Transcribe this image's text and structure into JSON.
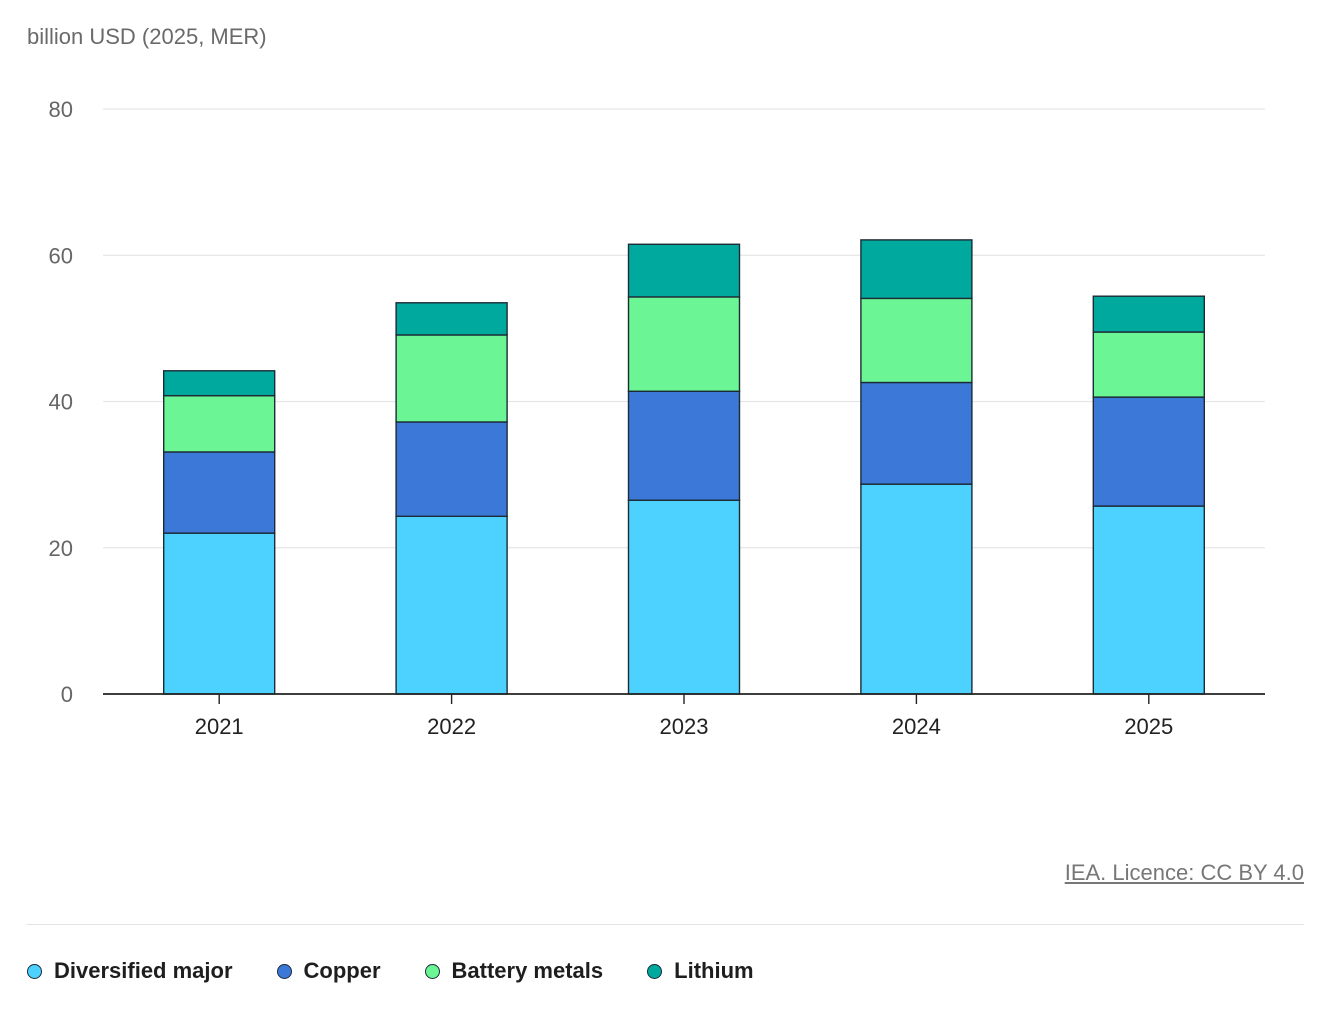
{
  "unit_label": "billion USD (2025, MER)",
  "credit": "IEA. Licence: CC BY 4.0",
  "chart_data": {
    "type": "bar",
    "stacked": true,
    "ylim": [
      0,
      80
    ],
    "yticks": [
      0,
      20,
      40,
      60,
      80
    ],
    "ylabel": "billion USD (2025, MER)",
    "xlabel": "",
    "grid": true,
    "legend_position": "bottom",
    "categories": [
      "2021",
      "2022",
      "2023",
      "2024",
      "2025"
    ],
    "series": [
      {
        "name": "Diversified major",
        "color": "#4dd2ff",
        "values": [
          22.0,
          24.3,
          26.5,
          28.7,
          25.7
        ]
      },
      {
        "name": "Copper",
        "color": "#3c78d8",
        "values": [
          11.1,
          12.9,
          14.9,
          13.9,
          14.9
        ]
      },
      {
        "name": "Battery metals",
        "color": "#6cf594",
        "values": [
          7.7,
          11.9,
          12.9,
          11.5,
          8.9
        ]
      },
      {
        "name": "Lithium",
        "color": "#00a99d",
        "values": [
          3.4,
          4.4,
          7.2,
          8.0,
          4.9
        ]
      }
    ]
  }
}
